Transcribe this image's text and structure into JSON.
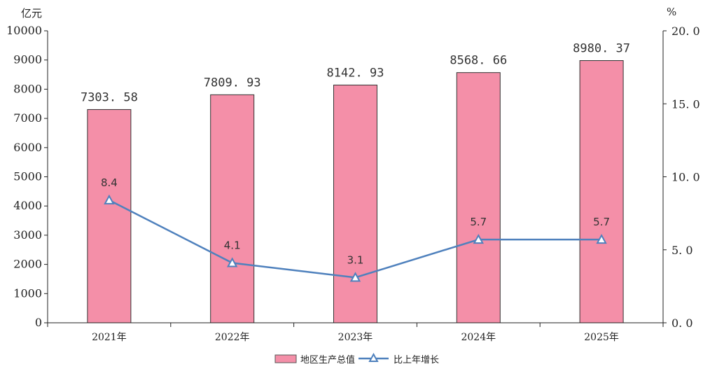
{
  "chart_data": {
    "type": "bar",
    "categories": [
      "2021年",
      "2022年",
      "2023年",
      "2024年",
      "2025年"
    ],
    "series": [
      {
        "name": "地区生产总值",
        "type": "bar",
        "axis": "left",
        "values": [
          7303.58,
          7809.93,
          8142.93,
          8568.66,
          8980.37
        ],
        "labels": [
          "7303. 58",
          "7809. 93",
          "8142. 93",
          "8568. 66",
          "8980. 37"
        ],
        "color": "#f48fa8"
      },
      {
        "name": "比上年增长",
        "type": "line",
        "axis": "right",
        "values": [
          8.4,
          4.1,
          3.1,
          5.7,
          5.7
        ],
        "labels": [
          "8.4",
          "4.1",
          "3.1",
          "5.7",
          "5.7"
        ],
        "color": "#4f81bd"
      }
    ],
    "left_axis": {
      "unit": "亿元",
      "range": [
        0,
        10000
      ],
      "ticks": [
        "0",
        "1000",
        "2000",
        "3000",
        "4000",
        "5000",
        "6000",
        "7000",
        "8000",
        "9000",
        "10000"
      ]
    },
    "right_axis": {
      "unit": "%",
      "range": [
        0,
        20
      ],
      "ticks": [
        "0. 0",
        "5. 0",
        "10. 0",
        "15. 0",
        "20. 0"
      ]
    },
    "grid": false,
    "legend_position": "bottom-center"
  }
}
